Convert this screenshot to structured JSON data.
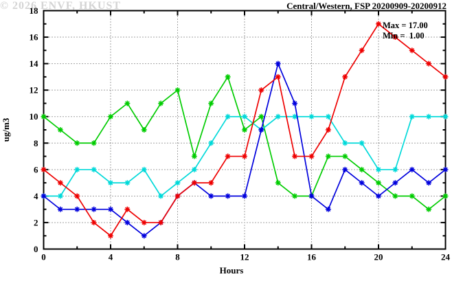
{
  "title": "Central/Western, FSP 20200909-20200912",
  "annotation": {
    "max_label": "Max = 17.00",
    "min_label": "Min =  1.00"
  },
  "watermark": "© 2026 ENVF, HKUST",
  "axes": {
    "x_label": "Hours",
    "y_label": "ug/m3"
  },
  "colors": {
    "axis": "#000000",
    "grid": "#444444",
    "watermark": "#d4d4d4"
  },
  "chart_data": {
    "type": "line",
    "title": "Central/Western, FSP 20200909-20200912",
    "xlabel": "Hours",
    "ylabel": "ug/m3",
    "xlim": [
      0,
      24
    ],
    "ylim": [
      0,
      18
    ],
    "x_ticks": [
      0,
      4,
      8,
      12,
      16,
      20,
      24
    ],
    "y_ticks": [
      0,
      2,
      4,
      6,
      8,
      10,
      12,
      14,
      16,
      18
    ],
    "x_minor_step": 2,
    "y_minor_step": 1,
    "grid": true,
    "legend": "none",
    "marker": "asterisk",
    "x": [
      0,
      1,
      2,
      3,
      4,
      5,
      6,
      7,
      8,
      9,
      10,
      11,
      12,
      13,
      14,
      15,
      16,
      17,
      18,
      19,
      20,
      21,
      22,
      23,
      24
    ],
    "series": [
      {
        "name": "green",
        "color": "#00cc00",
        "values": [
          10,
          9,
          8,
          8,
          10,
          11,
          9,
          11,
          12,
          7,
          11,
          13,
          9,
          10,
          5,
          4,
          4,
          7,
          7,
          6,
          5,
          4,
          4,
          3,
          4
        ]
      },
      {
        "name": "cyan",
        "color": "#00d9d9",
        "values": [
          4,
          4,
          6,
          6,
          5,
          5,
          6,
          4,
          5,
          6,
          8,
          10,
          10,
          9,
          10,
          10,
          10,
          10,
          8,
          8,
          6,
          6,
          10,
          10,
          10
        ]
      },
      {
        "name": "blue",
        "color": "#0000dd",
        "values": [
          4,
          3,
          3,
          3,
          3,
          2,
          1,
          2,
          4,
          5,
          4,
          4,
          4,
          9,
          14,
          11,
          4,
          3,
          6,
          5,
          4,
          5,
          6,
          5,
          6
        ]
      },
      {
        "name": "red",
        "color": "#ee0000",
        "values": [
          6,
          5,
          4,
          2,
          1,
          3,
          2,
          2,
          4,
          5,
          5,
          7,
          7,
          12,
          13,
          7,
          7,
          9,
          13,
          15,
          17,
          16,
          15,
          14,
          13
        ]
      }
    ],
    "annotations": [
      "Max = 17.00",
      "Min =  1.00"
    ]
  }
}
